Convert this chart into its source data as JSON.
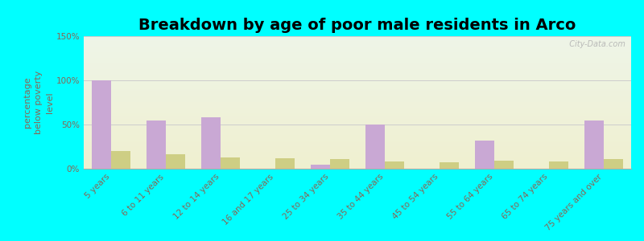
{
  "title": "Breakdown by age of poor male residents in Arco",
  "ylabel": "percentage\nbelow poverty\nlevel",
  "categories": [
    "5 years",
    "6 to 11 years",
    "12 to 14 years",
    "16 and 17 years",
    "25 to 34 years",
    "35 to 44 years",
    "45 to 54 years",
    "55 to 64 years",
    "65 to 74 years",
    "75 years and over"
  ],
  "arco_values": [
    100,
    55,
    58,
    0,
    5,
    50,
    0,
    32,
    0,
    55
  ],
  "idaho_values": [
    20,
    16,
    13,
    12,
    11,
    8,
    7,
    9,
    8,
    11
  ],
  "arco_color": "#c9a8d4",
  "idaho_color": "#cece84",
  "background_color": "#00ffff",
  "plot_bg_color1": "#eef5e8",
  "plot_bg_color2": "#f0f0d0",
  "ylim": [
    0,
    150
  ],
  "yticks": [
    0,
    50,
    100,
    150
  ],
  "ytick_labels": [
    "0%",
    "50%",
    "100%",
    "150%"
  ],
  "bar_width": 0.35,
  "title_fontsize": 14,
  "axis_label_fontsize": 8,
  "tick_fontsize": 7.5,
  "legend_fontsize": 10,
  "tick_color": "#886655",
  "ylabel_color": "#886655",
  "watermark": "  City-Data.com",
  "grid_color": "#cccccc"
}
